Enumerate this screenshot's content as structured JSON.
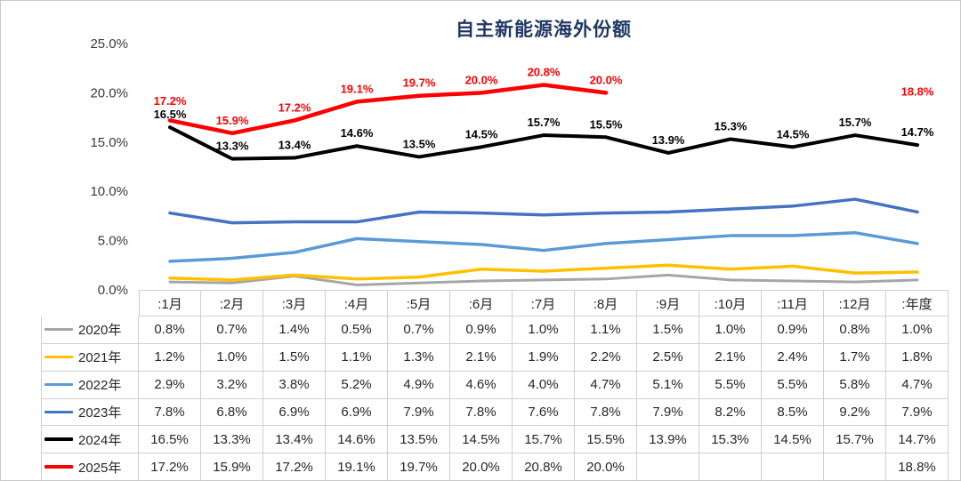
{
  "chart_data": {
    "type": "line",
    "title": "自主新能源海外份额",
    "xlabel": "",
    "ylabel": "",
    "ylim": [
      0,
      25
    ],
    "grid": false,
    "legend_position": "table-left",
    "y_ticks": [
      "0.0%",
      "5.0%",
      "10.0%",
      "15.0%",
      "20.0%",
      "25.0%"
    ],
    "categories": [
      ":1月",
      ":2月",
      ":3月",
      ":4月",
      ":5月",
      ":6月",
      ":7月",
      ":8月",
      ":9月",
      ":10月",
      ":11月",
      ":12月",
      ":年度"
    ],
    "series": [
      {
        "name": "2020年",
        "color": "#a6a6a6",
        "width": 3,
        "show_labels": false,
        "values": [
          0.8,
          0.7,
          1.4,
          0.5,
          0.7,
          0.9,
          1.0,
          1.1,
          1.5,
          1.0,
          0.9,
          0.8,
          1.0
        ]
      },
      {
        "name": "2021年",
        "color": "#ffc000",
        "width": 3.5,
        "show_labels": false,
        "values": [
          1.2,
          1.0,
          1.5,
          1.1,
          1.3,
          2.1,
          1.9,
          2.2,
          2.5,
          2.1,
          2.4,
          1.7,
          1.8
        ]
      },
      {
        "name": "2022年",
        "color": "#5b9bd5",
        "width": 3.5,
        "show_labels": false,
        "values": [
          2.9,
          3.2,
          3.8,
          5.2,
          4.9,
          4.6,
          4.0,
          4.7,
          5.1,
          5.5,
          5.5,
          5.8,
          4.7
        ]
      },
      {
        "name": "2023年",
        "color": "#4472c4",
        "width": 3.5,
        "show_labels": false,
        "values": [
          7.8,
          6.8,
          6.9,
          6.9,
          7.9,
          7.8,
          7.6,
          7.8,
          7.9,
          8.2,
          8.5,
          9.2,
          7.9
        ]
      },
      {
        "name": "2024年",
        "color": "#000000",
        "width": 4,
        "show_labels": true,
        "label_color": "#000000",
        "values": [
          16.5,
          13.3,
          13.4,
          14.6,
          13.5,
          14.5,
          15.7,
          15.5,
          13.9,
          15.3,
          14.5,
          15.7,
          14.7
        ]
      },
      {
        "name": "2025年",
        "color": "#ff0000",
        "width": 4.5,
        "show_labels": true,
        "label_color": "#ff0000",
        "values": [
          17.2,
          15.9,
          17.2,
          19.1,
          19.7,
          20.0,
          20.8,
          20.0,
          null,
          null,
          null,
          null,
          18.8
        ]
      }
    ]
  }
}
